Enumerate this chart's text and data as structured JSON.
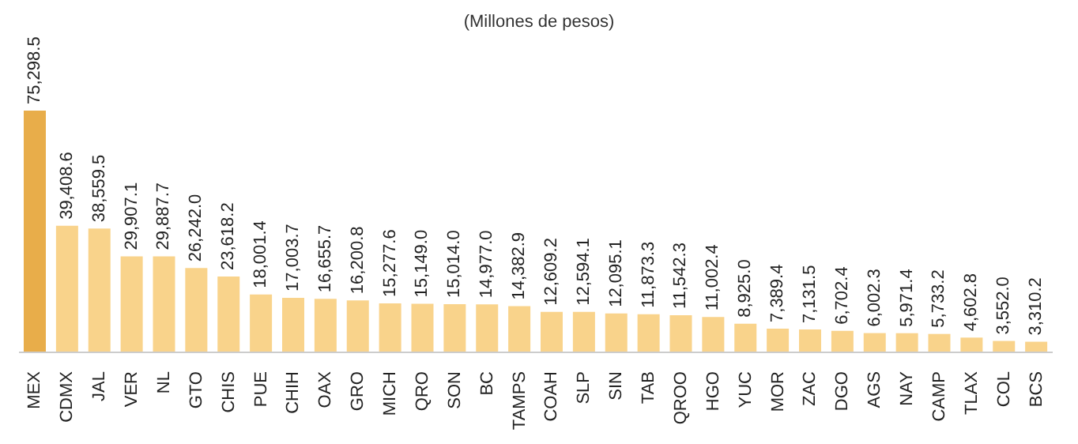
{
  "chart_data": {
    "type": "bar",
    "subtitle": "(Millones de pesos)",
    "categories": [
      "MEX",
      "CDMX",
      "JAL",
      "VER",
      "NL",
      "GTO",
      "CHIS",
      "PUE",
      "CHIH",
      "OAX",
      "GRO",
      "MICH",
      "QRO",
      "SON",
      "BC",
      "TAMPS",
      "COAH",
      "SLP",
      "SIN",
      "TAB",
      "QROO",
      "HGO",
      "YUC",
      "MOR",
      "ZAC",
      "DGO",
      "AGS",
      "NAY",
      "CAMP",
      "TLAX",
      "COL",
      "BCS"
    ],
    "values": [
      75298.5,
      39408.6,
      38559.5,
      29907.1,
      29887.7,
      26242.0,
      23618.2,
      18001.4,
      17003.7,
      16655.7,
      16200.8,
      15277.6,
      15149.0,
      15014.0,
      14977.0,
      14382.9,
      12609.2,
      12594.1,
      12095.1,
      11873.3,
      11542.3,
      11002.4,
      8925.0,
      7389.4,
      7131.5,
      6702.4,
      6002.3,
      5971.4,
      5733.2,
      4602.8,
      3552.0,
      3310.2
    ],
    "colors": [
      "#e8ad4a",
      "#f9d38b",
      "#f9d38b",
      "#f9d38b",
      "#f9d38b",
      "#f9d38b",
      "#f9d38b",
      "#f9d38b",
      "#f9d38b",
      "#f9d38b",
      "#f9d38b",
      "#f9d38b",
      "#f9d38b",
      "#f9d38b",
      "#f9d38b",
      "#f9d38b",
      "#f9d38b",
      "#f9d38b",
      "#f9d38b",
      "#f9d38b",
      "#f9d38b",
      "#f9d38b",
      "#f9d38b",
      "#f9d38b",
      "#f9d38b",
      "#f9d38b",
      "#f9d38b",
      "#f9d38b",
      "#f9d38b",
      "#f9d38b",
      "#f9d38b",
      "#f9d38b"
    ],
    "value_labels": [
      "75,298.5",
      "39,408.6",
      "38,559.5",
      "29,907.1",
      "29,887.7",
      "26,242.0",
      "23,618.2",
      "18,001.4",
      "17,003.7",
      "16,655.7",
      "16,200.8",
      "15,277.6",
      "15,149.0",
      "15,014.0",
      "14,977.0",
      "14,382.9",
      "12,609.2",
      "12,594.1",
      "12,095.1",
      "11,873.3",
      "11,542.3",
      "11,002.4",
      "8,925.0",
      "7,389.4",
      "7,131.5",
      "6,702.4",
      "6,002.3",
      "5,971.4",
      "5,733.2",
      "4,602.8",
      "3,552.0",
      "3,310.2"
    ]
  }
}
